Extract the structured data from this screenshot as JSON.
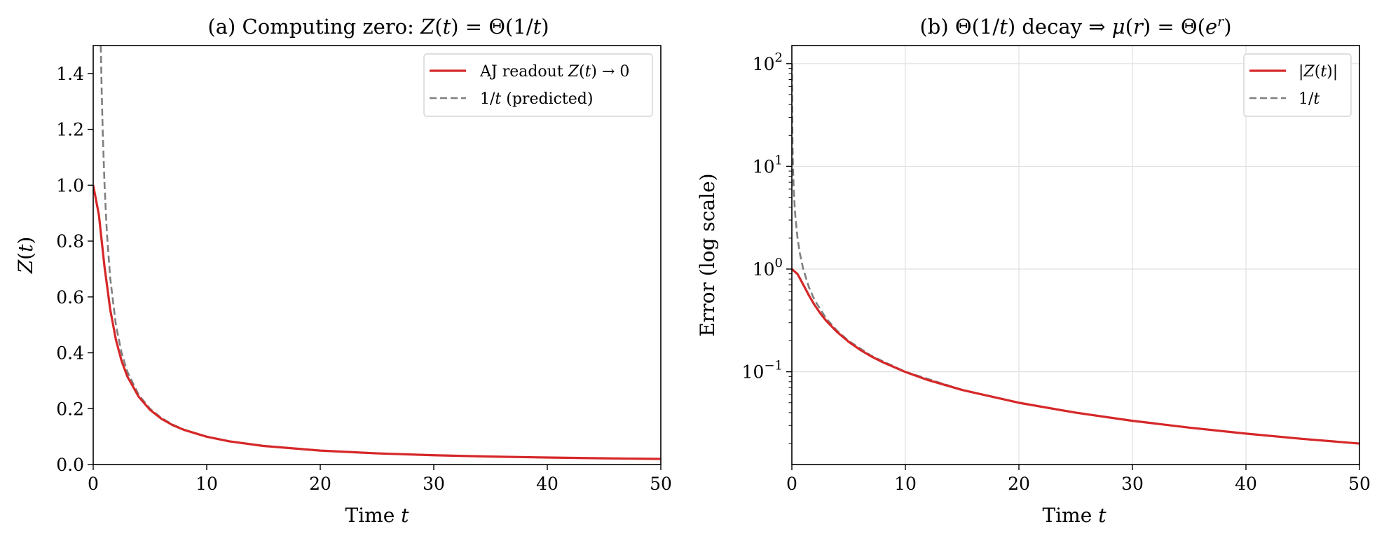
{
  "chart_data": [
    {
      "type": "line",
      "title_parts": [
        "(a) Computing zero: ",
        "Z",
        "(",
        "t",
        ") = Θ(1/",
        "t",
        ")"
      ],
      "xlabel_parts": [
        "Time ",
        "t"
      ],
      "ylabel_parts": [
        "Z",
        "(",
        "t",
        ")"
      ],
      "xlim": [
        0,
        50
      ],
      "ylim": [
        0,
        1.5
      ],
      "yscale": "linear",
      "grid": false,
      "legend_position": "top-right",
      "x_ticks": [
        0,
        10,
        20,
        30,
        40,
        50
      ],
      "x_tick_labels": [
        "0",
        "10",
        "20",
        "30",
        "40",
        "50"
      ],
      "y_ticks": [
        0.0,
        0.2,
        0.4,
        0.6,
        0.8,
        1.0,
        1.2,
        1.4
      ],
      "y_tick_labels": [
        "0.0",
        "0.2",
        "0.4",
        "0.6",
        "0.8",
        "1.0",
        "1.2",
        "1.4"
      ],
      "series": [
        {
          "legend_parts": [
            "AJ readout ",
            "Z",
            "(",
            "t",
            ") → 0"
          ],
          "color": "#d62728",
          "style": "solid",
          "x": [
            0,
            0.5,
            1,
            1.5,
            2,
            2.5,
            3,
            4,
            5,
            6,
            7,
            8,
            10,
            12,
            15,
            20,
            25,
            30,
            35,
            40,
            45,
            50
          ],
          "y": [
            1.0,
            0.894,
            0.707,
            0.555,
            0.447,
            0.371,
            0.316,
            0.243,
            0.196,
            0.164,
            0.141,
            0.124,
            0.0995,
            0.083,
            0.0665,
            0.0499,
            0.04,
            0.0333,
            0.0286,
            0.025,
            0.0222,
            0.02
          ]
        },
        {
          "legend_parts": [
            "1/",
            "t",
            " (predicted)"
          ],
          "color": "#7f7f7f",
          "style": "dashed",
          "x": [
            0.6667,
            0.75,
            0.85,
            1,
            1.2,
            1.5,
            2,
            2.5,
            3,
            4,
            5,
            6,
            7,
            8,
            10,
            12,
            15,
            20,
            25,
            30,
            35,
            40,
            45,
            50
          ],
          "y": [
            1.5,
            1.333,
            1.176,
            1.0,
            0.833,
            0.667,
            0.5,
            0.4,
            0.333,
            0.25,
            0.2,
            0.167,
            0.143,
            0.125,
            0.1,
            0.0833,
            0.0667,
            0.05,
            0.04,
            0.0333,
            0.0286,
            0.025,
            0.0222,
            0.02
          ]
        }
      ]
    },
    {
      "type": "line",
      "title_parts": [
        "(b) Θ(1/",
        "t",
        ") decay ⇒ ",
        "μ",
        "(",
        "r",
        ") = Θ(",
        "e",
        "r",
        ")"
      ],
      "xlabel_parts": [
        "Time ",
        "t"
      ],
      "ylabel": "Error (log scale)",
      "xlim": [
        0,
        50
      ],
      "ylim": [
        0.0125,
        150
      ],
      "yscale": "log",
      "grid": true,
      "legend_position": "top-right",
      "x_ticks": [
        0,
        10,
        20,
        30,
        40,
        50
      ],
      "x_tick_labels": [
        "0",
        "10",
        "20",
        "30",
        "40",
        "50"
      ],
      "y_ticks": [
        0.1,
        1,
        10,
        100
      ],
      "y_tick_base": "10",
      "y_tick_exponents": [
        "−1",
        "0",
        "1",
        "2"
      ],
      "series": [
        {
          "legend_parts": [
            "|",
            "Z",
            "(",
            "t",
            ")|"
          ],
          "color": "#d62728",
          "style": "solid",
          "x": [
            0,
            0.5,
            1,
            1.5,
            2,
            2.5,
            3,
            4,
            5,
            6,
            7,
            8,
            10,
            12,
            15,
            20,
            25,
            30,
            35,
            40,
            45,
            50
          ],
          "y": [
            1.0,
            0.894,
            0.707,
            0.555,
            0.447,
            0.371,
            0.316,
            0.243,
            0.196,
            0.164,
            0.141,
            0.124,
            0.0995,
            0.083,
            0.0665,
            0.0499,
            0.04,
            0.0333,
            0.0286,
            0.025,
            0.0222,
            0.02
          ]
        },
        {
          "legend_parts": [
            "1/",
            "t"
          ],
          "color": "#7f7f7f",
          "style": "dashed",
          "x": [
            0.01,
            0.015,
            0.02,
            0.03,
            0.05,
            0.07,
            0.1,
            0.15,
            0.2,
            0.3,
            0.5,
            0.7,
            1,
            1.5,
            2,
            3,
            4,
            5,
            7,
            10,
            15,
            20,
            25,
            30,
            35,
            40,
            45,
            50
          ],
          "y": [
            100,
            66.7,
            50,
            33.3,
            20,
            14.3,
            10,
            6.67,
            5,
            3.33,
            2,
            1.43,
            1,
            0.667,
            0.5,
            0.333,
            0.25,
            0.2,
            0.143,
            0.1,
            0.0667,
            0.05,
            0.04,
            0.0333,
            0.0286,
            0.025,
            0.0222,
            0.02
          ]
        }
      ]
    }
  ]
}
